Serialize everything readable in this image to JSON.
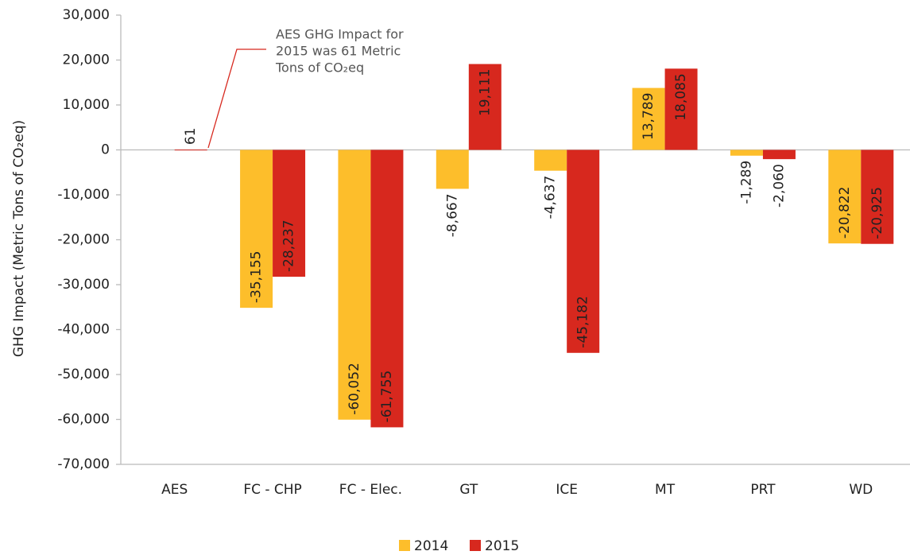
{
  "chart_data": {
    "type": "bar",
    "y_axis_label": "GHG Impact (Metric Tons of CO₂eq)",
    "annotation": [
      "AES GHG Impact for",
      "2015 was 61 Metric",
      "Tons of CO₂eq"
    ],
    "categories": [
      "AES",
      "FC - CHP",
      "FC - Elec.",
      "GT",
      "ICE",
      "MT",
      "PRT",
      "WD"
    ],
    "series": [
      {
        "name": "2014",
        "color": "#fdbe2b",
        "values": [
          null,
          -35155,
          -60052,
          -8667,
          -4637,
          13789,
          -1289,
          -20822
        ],
        "value_labels": [
          null,
          "-35,155",
          "-60,052",
          "-8,667",
          "-4,637",
          "13,789",
          "-1,289",
          "-20,822"
        ]
      },
      {
        "name": "2015",
        "color": "#d7281e",
        "values": [
          61,
          -28237,
          -61755,
          19111,
          -45182,
          18085,
          -2060,
          -20925
        ],
        "value_labels": [
          "61",
          "-28,237",
          "-61,755",
          "19,111",
          "-45,182",
          "18,085",
          "-2,060",
          "-20,925"
        ]
      }
    ],
    "ylim": [
      -70000,
      30000
    ],
    "yticks": [
      {
        "value": -70000,
        "label": "-70,000"
      },
      {
        "value": -60000,
        "label": "-60,000"
      },
      {
        "value": -50000,
        "label": "-50,000"
      },
      {
        "value": -40000,
        "label": "-40,000"
      },
      {
        "value": -30000,
        "label": "-30,000"
      },
      {
        "value": -20000,
        "label": "-20,000"
      },
      {
        "value": -10000,
        "label": "-10,000"
      },
      0,
      {
        "value": 10000,
        "label": "10,000"
      },
      {
        "value": 20000,
        "label": "20,000"
      },
      {
        "value": 30000,
        "label": "30,000"
      }
    ],
    "grid": false,
    "legend": "bottom"
  }
}
